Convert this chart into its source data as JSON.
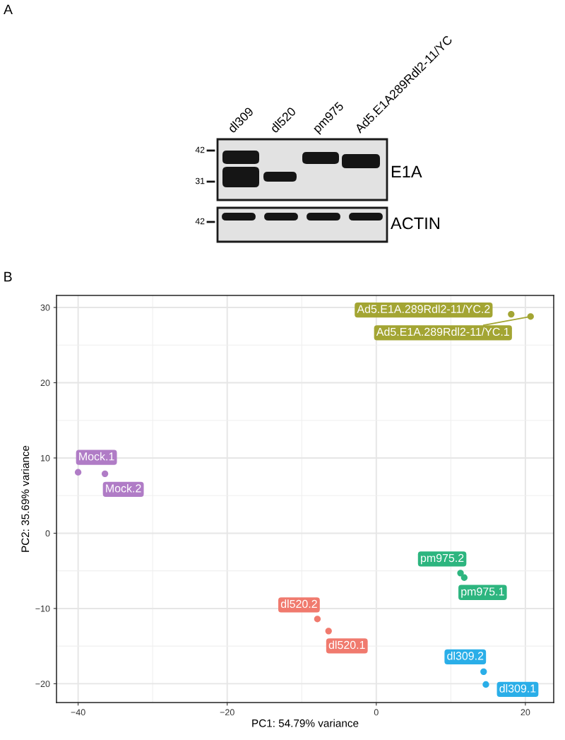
{
  "chart_data": [
    {
      "type": "other",
      "title": "A",
      "categories": [
        "dl309",
        "dl520",
        "pm975",
        "Ad5.E1A289Rdl2-11/YC"
      ],
      "annotations": [
        "42",
        "31",
        "42",
        "E1A",
        "ACTIN"
      ]
    },
    {
      "type": "scatter",
      "title": "B",
      "xlabel": "PC1: 54.79% variance",
      "ylabel": "PC2: 35.69% variance",
      "series": [
        {
          "color": "#a3a533",
          "x": [
            18.1,
            20.7
          ],
          "values": [
            29.1,
            28.8
          ]
        },
        {
          "color": "#2aaee8",
          "x": [
            14.4,
            14.7
          ],
          "values": [
            -18.4,
            -20.1
          ]
        },
        {
          "color": "#f07a6e",
          "x": [
            -7.9,
            -6.4
          ],
          "values": [
            -11.4,
            -13.0
          ]
        },
        {
          "color": "#b07cc6",
          "x": [
            -40.0,
            -36.4
          ],
          "values": [
            8.1,
            7.9
          ]
        },
        {
          "color": "#2db57f",
          "x": [
            11.3,
            11.8
          ],
          "values": [
            -5.3,
            -5.9
          ]
        }
      ],
      "annotations": [
        {
          "text": "Ad5.E1A.289Rdl2-11/YC.2",
          "x": 18.1,
          "y": 29.1
        },
        {
          "text": "Ad5.E1A.289Rdl2-11/YC.1",
          "x": 20.7,
          "y": 28.8
        },
        {
          "text": "dl309.2",
          "x": 14.4,
          "y": -18.4
        },
        {
          "text": "dl309.1",
          "x": 14.7,
          "y": -20.1
        },
        {
          "text": "dl520.2",
          "x": -7.9,
          "y": -11.4
        },
        {
          "text": "dl520.1",
          "x": -6.4,
          "y": -13.0
        },
        {
          "text": "Mock.1",
          "x": -40.0,
          "y": 8.1
        },
        {
          "text": "Mock.2",
          "x": -36.4,
          "y": 7.9
        },
        {
          "text": "pm975.2",
          "x": 11.3,
          "y": -5.3
        },
        {
          "text": "pm975.1",
          "x": 11.8,
          "y": -5.9
        }
      ],
      "xlim": [
        -42.9,
        23.8
      ],
      "ylim": [
        -22.5,
        31.6
      ],
      "xticks": [
        {
          "value": -40,
          "label": "−40"
        },
        {
          "value": -20,
          "label": "−20"
        },
        0,
        20
      ],
      "yticks": [
        {
          "value": -20,
          "label": "−20"
        },
        {
          "value": -10,
          "label": "−10"
        },
        0,
        10,
        20,
        30
      ],
      "grid": true,
      "marker": "circle"
    }
  ]
}
